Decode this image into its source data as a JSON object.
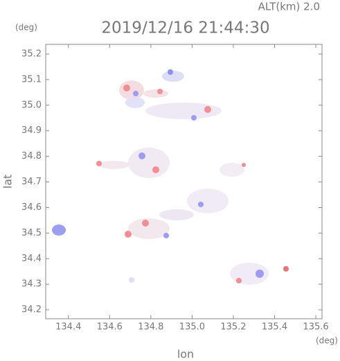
{
  "chart_data": {
    "type": "map",
    "title": "2019/12/16 21:44:30",
    "subtitle": "ALT(km) 2.0",
    "x_label": "lon",
    "x_unit": "(deg)",
    "y_label": "lat",
    "y_unit": "(deg)",
    "xlim": [
      134.29,
      135.63
    ],
    "ylim": [
      34.165,
      35.238
    ],
    "xticks": [
      134.4,
      134.6,
      134.8,
      {
        "value": 135,
        "label": "135.0"
      },
      135.2,
      135.4,
      135.6
    ],
    "yticks": [
      34.2,
      34.3,
      34.4,
      34.5,
      34.6,
      34.7,
      34.8,
      34.9,
      {
        "value": 35,
        "label": "35.0"
      },
      35.1,
      35.2
    ]
  }
}
